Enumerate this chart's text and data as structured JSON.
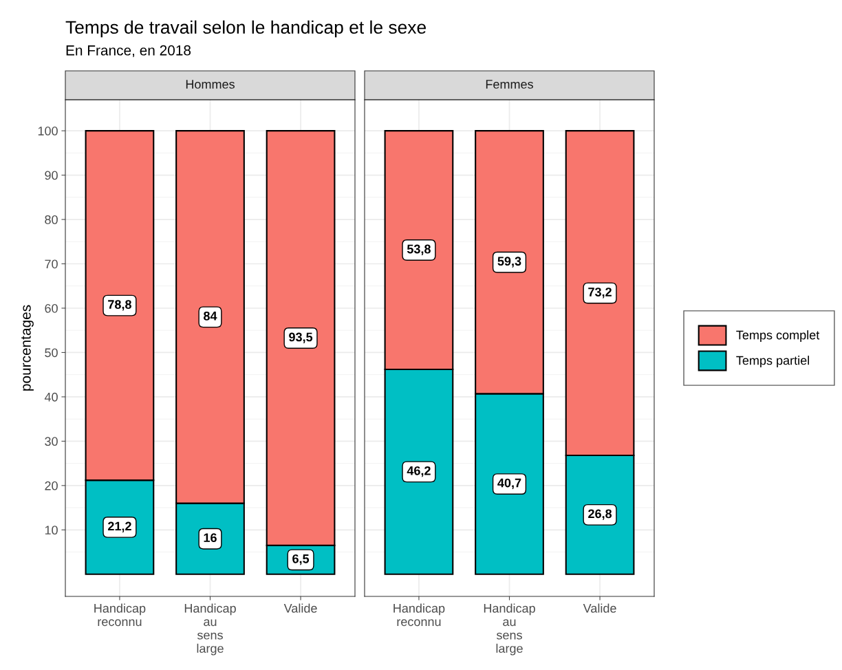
{
  "chart_data": [
    {
      "type": "bar",
      "stacked": true,
      "title": "Temps de travail selon le handicap et le sexe",
      "subtitle": "En France, en 2018",
      "annotations": [
        "Hommes"
      ],
      "ylabel": "pourcentages",
      "categories": [
        "Handicap\nreconnu",
        "Handicap\nau\nsens\nlarge",
        "Valide"
      ],
      "series": [
        {
          "name": "Temps partiel",
          "color": "#00bfc4",
          "values": [
            21.2,
            16,
            6.5
          ],
          "value_labels": [
            "21,2",
            "16",
            "6,5"
          ]
        },
        {
          "name": "Temps complet",
          "color": "#f8766d",
          "values": [
            78.8,
            84,
            93.5
          ],
          "value_labels": [
            "78,8",
            "84",
            "93,5"
          ]
        }
      ],
      "ylim": [
        -5,
        107
      ],
      "yticks": [
        10,
        20,
        30,
        40,
        50,
        60,
        70,
        80,
        90,
        100
      ],
      "grid": true,
      "legend": "right"
    },
    {
      "type": "bar",
      "stacked": true,
      "annotations": [
        "Femmes"
      ],
      "categories": [
        "Handicap\nreconnu",
        "Handicap\nau\nsens\nlarge",
        "Valide"
      ],
      "series": [
        {
          "color": "#00bfc4",
          "values": [
            46.2,
            40.7,
            26.8
          ],
          "value_labels": [
            "46,2",
            "40,7",
            "26,8"
          ]
        },
        {
          "color": "#f8766d",
          "values": [
            53.8,
            59.3,
            73.2
          ],
          "value_labels": [
            "53,8",
            "59,3",
            "73,2"
          ]
        }
      ],
      "ylim": [
        -5,
        107
      ],
      "yticks": [
        10,
        20,
        30,
        40,
        50,
        60,
        70,
        80,
        90,
        100
      ],
      "grid": true,
      "tick_labels": "x"
    }
  ]
}
